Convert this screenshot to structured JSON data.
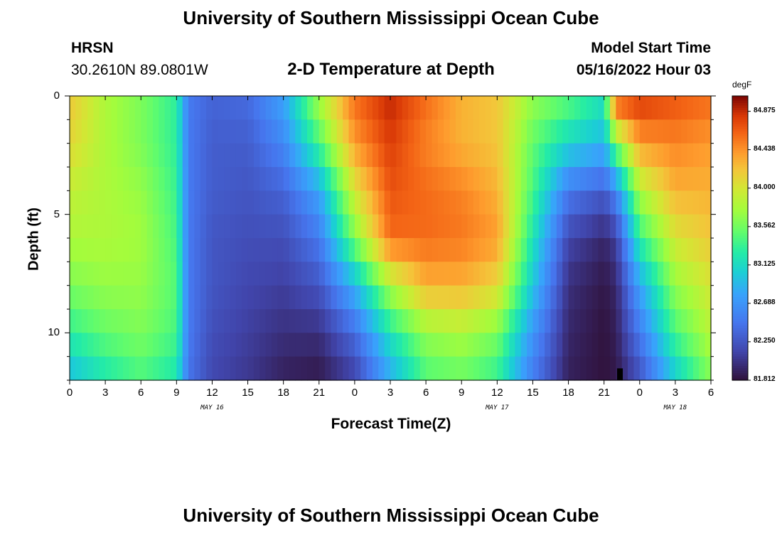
{
  "header": {
    "title": "University of Southern Mississippi Ocean Cube",
    "station": "HRSN",
    "coords": "30.2610N  89.0801W",
    "plot_title": "2-D Temperature at Depth",
    "model_label": "Model Start Time",
    "model_time": "05/16/2022 Hour 03"
  },
  "footer": {
    "title": "University of Southern Mississippi Ocean Cube"
  },
  "chart_data": {
    "type": "heatmap",
    "title": "2-D Temperature at Depth",
    "xlabel": "Forecast Time(Z)",
    "ylabel": "Depth (ft)",
    "x_range_hours": [
      0,
      54
    ],
    "y_range_ft": [
      0,
      12
    ],
    "x_tick_labels": [
      "0",
      "3",
      "6",
      "9",
      "12",
      "15",
      "18",
      "21",
      "0",
      "3",
      "6",
      "9",
      "12",
      "15",
      "18",
      "21",
      "0",
      "3",
      "6"
    ],
    "y_tick_labels": [
      "0",
      "5",
      "10"
    ],
    "day_labels": [
      {
        "label": "MAY 16",
        "hour": 12
      },
      {
        "label": "MAY 17",
        "hour": 36
      },
      {
        "label": "MAY 18",
        "hour": 51
      }
    ],
    "colorbar": {
      "units": "degF",
      "min": 81.812,
      "max": 85.05,
      "ticks": [
        "84.875",
        "84.438",
        "84.000",
        "83.562",
        "83.125",
        "82.688",
        "82.250",
        "81.812"
      ]
    },
    "anchor_hours": [
      0,
      3,
      6,
      9,
      10,
      12,
      15,
      18,
      21,
      24,
      27,
      30,
      33,
      36,
      39,
      42,
      45,
      46,
      48,
      51,
      54
    ],
    "depth_rows_ft": [
      0,
      2,
      4,
      6,
      8,
      10,
      12
    ],
    "temperature_degF": [
      [
        84.2,
        83.8,
        83.6,
        83.3,
        82.5,
        82.35,
        82.4,
        82.8,
        83.8,
        84.6,
        84.9,
        84.6,
        84.3,
        84.2,
        83.7,
        83.5,
        83.2,
        84.8,
        84.85,
        84.7,
        84.6
      ],
      [
        84.1,
        83.8,
        83.6,
        83.3,
        82.5,
        82.3,
        82.3,
        82.6,
        83.4,
        84.4,
        84.8,
        84.5,
        84.3,
        84.2,
        83.5,
        83.1,
        82.9,
        83.6,
        84.4,
        84.5,
        84.4
      ],
      [
        83.9,
        83.8,
        83.7,
        83.35,
        82.5,
        82.3,
        82.25,
        82.35,
        82.8,
        84.0,
        84.7,
        84.6,
        84.5,
        84.3,
        83.4,
        82.5,
        82.3,
        82.6,
        83.8,
        84.3,
        84.3
      ],
      [
        83.8,
        83.8,
        83.75,
        83.4,
        82.5,
        82.25,
        82.2,
        82.2,
        82.5,
        83.6,
        84.6,
        84.6,
        84.55,
        84.4,
        83.2,
        82.15,
        81.95,
        82.1,
        83.3,
        84.0,
        84.2
      ],
      [
        83.6,
        83.7,
        83.7,
        83.45,
        82.5,
        82.25,
        82.15,
        82.1,
        82.25,
        82.9,
        83.8,
        84.3,
        84.3,
        84.1,
        83.0,
        82.0,
        81.85,
        81.95,
        82.8,
        83.7,
        84.0
      ],
      [
        83.3,
        83.5,
        83.6,
        83.4,
        82.5,
        82.2,
        82.1,
        82.0,
        82.0,
        82.4,
        83.2,
        83.7,
        83.8,
        83.6,
        82.7,
        81.95,
        81.82,
        81.9,
        82.5,
        83.4,
        83.85
      ],
      [
        82.9,
        83.2,
        83.4,
        83.2,
        82.45,
        82.15,
        82.05,
        81.9,
        81.85,
        82.1,
        82.8,
        83.4,
        83.5,
        83.3,
        82.5,
        81.9,
        81.82,
        81.85,
        82.2,
        83.0,
        83.6
      ]
    ]
  }
}
